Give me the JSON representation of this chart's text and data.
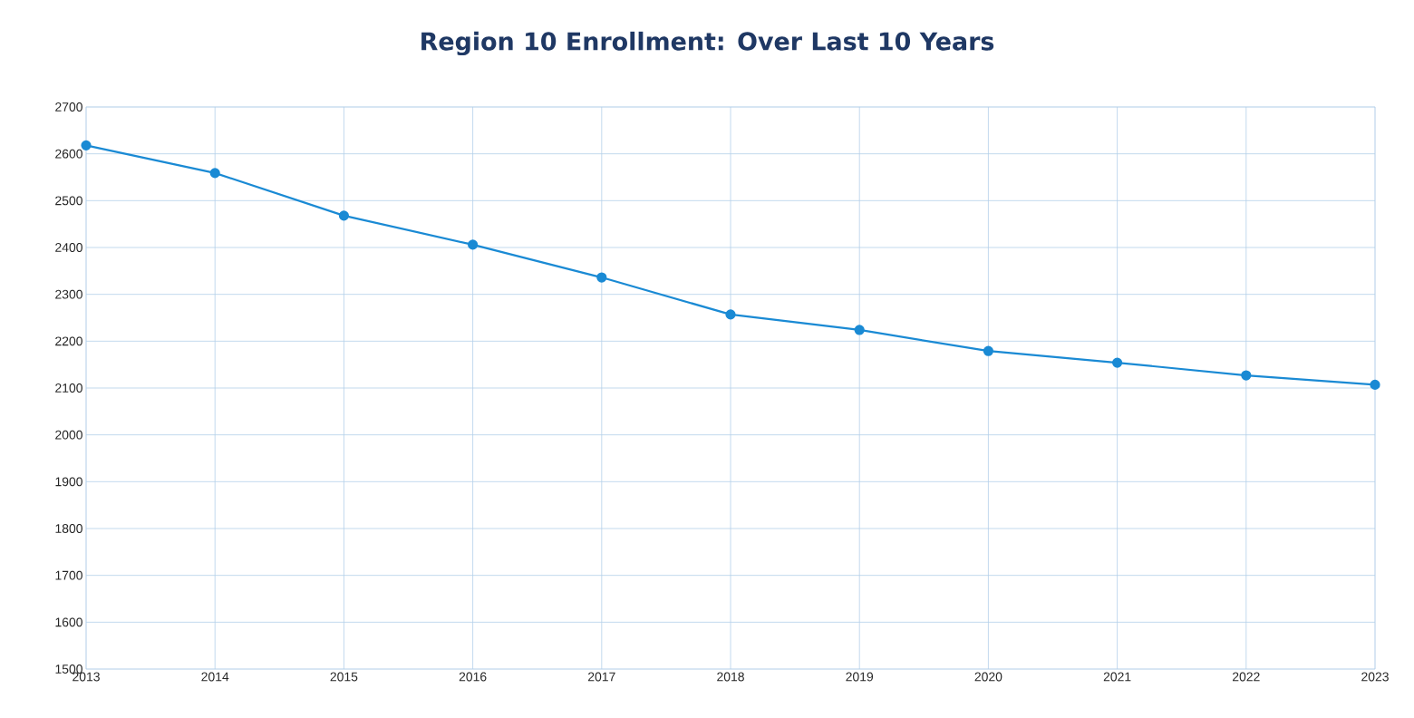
{
  "chart_data": {
    "type": "line",
    "title": "Region 10 Enrollment:  Over Last 10 Years",
    "categories": [
      "2013",
      "2014",
      "2015",
      "2016",
      "2017",
      "2018",
      "2019",
      "2020",
      "2021",
      "2022",
      "2023"
    ],
    "values": [
      2618,
      2559,
      2468,
      2406,
      2336,
      2257,
      2224,
      2179,
      2154,
      2127,
      2107
    ],
    "color": "#1a8ad4",
    "ylim": [
      1500,
      2700
    ],
    "yticks": [
      1500,
      1600,
      1700,
      1800,
      1900,
      2000,
      2100,
      2200,
      2300,
      2400,
      2500,
      2600,
      2700
    ],
    "grid": true,
    "marker": "circle"
  }
}
